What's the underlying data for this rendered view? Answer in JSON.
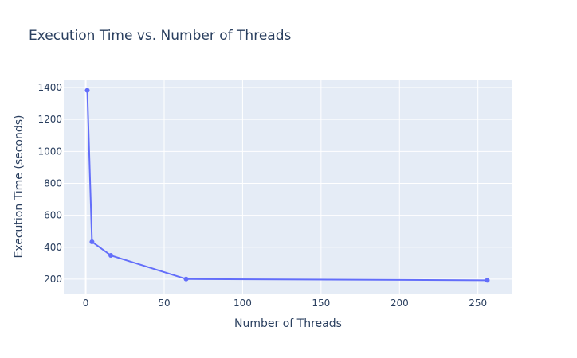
{
  "chart_data": {
    "type": "line",
    "title": "Execution Time vs. Number of Threads",
    "xlabel": "Number of Threads",
    "ylabel": "Execution Time (seconds)",
    "xlim": [
      -14,
      272
    ],
    "ylim": [
      110,
      1450
    ],
    "xticks": [
      0,
      50,
      100,
      150,
      200,
      250
    ],
    "yticks": [
      200,
      400,
      600,
      800,
      1000,
      1200,
      1400
    ],
    "grid": true,
    "series": [
      {
        "x": [
          1,
          4,
          16,
          64,
          256
        ],
        "y": [
          1382,
          434,
          349,
          201,
          193
        ],
        "color": "#636efa"
      }
    ],
    "colors": {
      "plot_background": "#e5ecf6",
      "grid": "#ffffff",
      "text": "#2a3f5f"
    }
  }
}
